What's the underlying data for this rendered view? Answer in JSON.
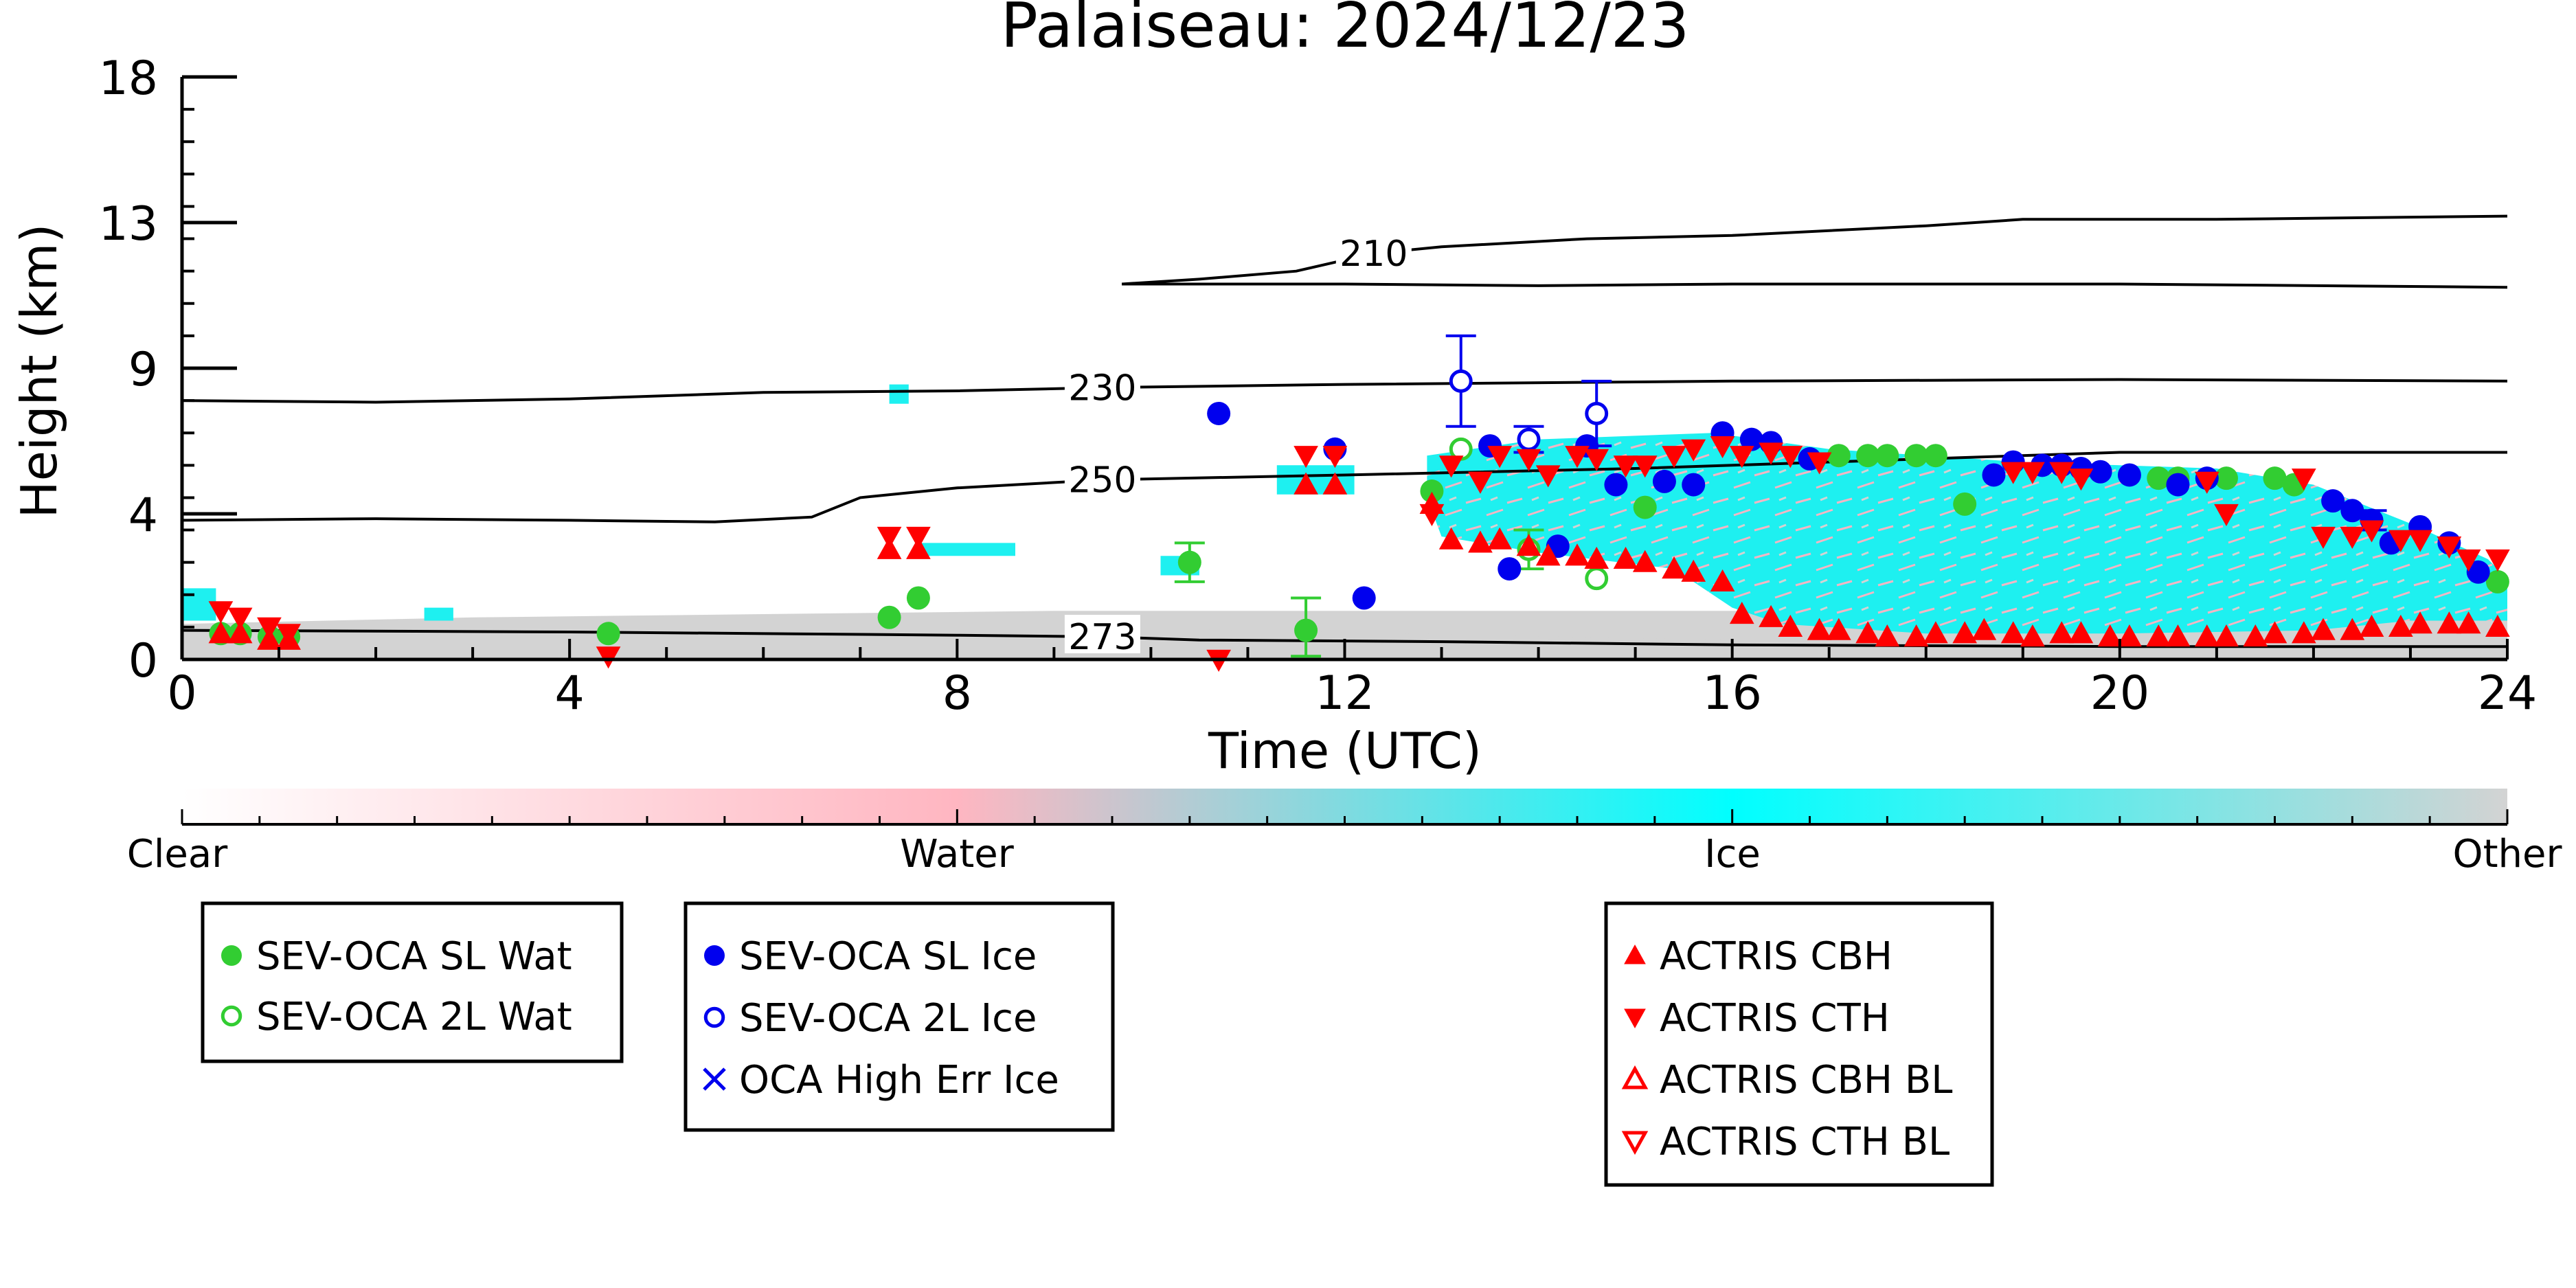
{
  "chart_data": {
    "type": "scatter",
    "title": "Palaiseau: 2024/12/23",
    "xlabel": "Time (UTC)",
    "ylabel": "Height (km)",
    "xlim": [
      0,
      24
    ],
    "ylim": [
      0,
      18
    ],
    "x_ticks": [
      "0",
      "4",
      "8",
      "12",
      "16",
      "20",
      "24"
    ],
    "x_tick_values": [
      0,
      4,
      8,
      12,
      16,
      20,
      24
    ],
    "y_ticks": [
      "0",
      "4",
      "9",
      "13",
      "18"
    ],
    "y_tick_values": [
      0,
      4.5,
      9,
      13.5,
      18
    ],
    "grid": false,
    "colorbar": {
      "labels": [
        "Clear",
        "Water",
        "Ice",
        "Other"
      ],
      "colors": [
        "#ffffff",
        "#ffb6c1",
        "#00ffff",
        "#d3d3d3"
      ]
    },
    "contours": [
      {
        "label": "210",
        "label_at": [
          12.3,
          12.55
        ],
        "points": [
          [
            9.7,
            11.6
          ],
          [
            10.5,
            11.75
          ],
          [
            11.5,
            12.0
          ],
          [
            12.3,
            12.55
          ],
          [
            13,
            12.75
          ],
          [
            14.5,
            13.0
          ],
          [
            16,
            13.1
          ],
          [
            18,
            13.4
          ],
          [
            19,
            13.6
          ],
          [
            21,
            13.6
          ],
          [
            24,
            13.7
          ]
        ]
      },
      {
        "label": "",
        "points": [
          [
            9.7,
            11.6
          ],
          [
            12,
            11.6
          ],
          [
            14,
            11.55
          ],
          [
            16,
            11.6
          ],
          [
            18,
            11.6
          ],
          [
            20,
            11.6
          ],
          [
            24,
            11.5
          ]
        ]
      },
      {
        "label": "230",
        "label_at": [
          9.5,
          8.4
        ],
        "points": [
          [
            0,
            8.0
          ],
          [
            2,
            7.95
          ],
          [
            4,
            8.05
          ],
          [
            6,
            8.25
          ],
          [
            8,
            8.3
          ],
          [
            9.5,
            8.4
          ],
          [
            12,
            8.5
          ],
          [
            16,
            8.6
          ],
          [
            20,
            8.65
          ],
          [
            24,
            8.6
          ]
        ]
      },
      {
        "label": "250",
        "label_at": [
          9.5,
          5.55
        ],
        "points": [
          [
            0,
            4.3
          ],
          [
            2,
            4.35
          ],
          [
            4,
            4.3
          ],
          [
            5.5,
            4.25
          ],
          [
            6.5,
            4.4
          ],
          [
            7,
            5.0
          ],
          [
            8,
            5.3
          ],
          [
            9.5,
            5.55
          ],
          [
            12,
            5.7
          ],
          [
            15,
            5.9
          ],
          [
            18,
            6.2
          ],
          [
            20,
            6.4
          ],
          [
            24,
            6.4
          ]
        ]
      },
      {
        "label": "273",
        "label_at": [
          9.5,
          0.7
        ],
        "points": [
          [
            0,
            0.9
          ],
          [
            4,
            0.85
          ],
          [
            8,
            0.75
          ],
          [
            9.5,
            0.7
          ],
          [
            10.5,
            0.6
          ],
          [
            13,
            0.55
          ],
          [
            16,
            0.45
          ],
          [
            20,
            0.4
          ],
          [
            24,
            0.4
          ]
        ]
      }
    ],
    "series": [
      {
        "name": "SEV-OCA SL Wat",
        "color": "#32cd32",
        "marker": "circle-filled",
        "points": [
          [
            0.4,
            0.8
          ],
          [
            0.6,
            0.8
          ],
          [
            0.9,
            0.7
          ],
          [
            1.1,
            0.7
          ],
          [
            4.4,
            0.8
          ],
          [
            7.3,
            1.3
          ],
          [
            7.6,
            1.9
          ],
          [
            10.4,
            3.0
          ],
          [
            11.6,
            0.9
          ],
          [
            12.9,
            5.2
          ],
          [
            15.1,
            4.7
          ],
          [
            17.1,
            6.3
          ],
          [
            17.4,
            6.3
          ],
          [
            17.6,
            6.3
          ],
          [
            17.9,
            6.3
          ],
          [
            18.1,
            6.3
          ],
          [
            18.4,
            4.8
          ],
          [
            20.4,
            5.6
          ],
          [
            20.6,
            5.6
          ],
          [
            21.1,
            5.6
          ],
          [
            21.6,
            5.6
          ],
          [
            21.8,
            5.4
          ],
          [
            23.9,
            2.4
          ]
        ],
        "errors": [
          [
            10.4,
            2.4,
            3.6
          ],
          [
            11.6,
            0.1,
            1.9
          ]
        ]
      },
      {
        "name": "SEV-OCA 2L Wat",
        "color": "#32cd32",
        "marker": "circle-open",
        "points": [
          [
            13.2,
            6.5
          ],
          [
            13.9,
            3.4
          ],
          [
            14.6,
            2.5
          ]
        ],
        "errors": [
          [
            13.9,
            2.8,
            4.0
          ]
        ]
      },
      {
        "name": "SEV-OCA SL Ice",
        "color": "#0000ee",
        "marker": "circle-filled",
        "points": [
          [
            10.7,
            7.6
          ],
          [
            11.9,
            6.5
          ],
          [
            12.2,
            1.9
          ],
          [
            13.5,
            6.6
          ],
          [
            13.7,
            2.8
          ],
          [
            14.2,
            3.5
          ],
          [
            14.5,
            6.6
          ],
          [
            14.8,
            5.4
          ],
          [
            15.3,
            5.5
          ],
          [
            15.6,
            5.4
          ],
          [
            15.9,
            7.0
          ],
          [
            16.2,
            6.8
          ],
          [
            16.4,
            6.7
          ],
          [
            16.8,
            6.2
          ],
          [
            18.7,
            5.7
          ],
          [
            18.9,
            6.1
          ],
          [
            19.2,
            6.0
          ],
          [
            19.4,
            6.0
          ],
          [
            19.6,
            5.9
          ],
          [
            19.8,
            5.8
          ],
          [
            20.1,
            5.7
          ],
          [
            20.6,
            5.4
          ],
          [
            20.9,
            5.6
          ],
          [
            22.2,
            4.9
          ],
          [
            22.4,
            4.6
          ],
          [
            22.6,
            4.3
          ],
          [
            22.8,
            3.6
          ],
          [
            23.1,
            4.1
          ],
          [
            23.4,
            3.6
          ],
          [
            23.7,
            2.7
          ]
        ],
        "errors": [
          [
            22.6,
            4.0,
            4.6
          ]
        ]
      },
      {
        "name": "SEV-OCA 2L Ice",
        "color": "#0000ee",
        "marker": "circle-open",
        "points": [
          [
            13.2,
            8.6
          ],
          [
            13.9,
            6.8
          ],
          [
            14.6,
            7.6
          ]
        ],
        "errors": [
          [
            13.2,
            7.2,
            10.0
          ],
          [
            13.9,
            6.4,
            7.2
          ],
          [
            14.6,
            6.6,
            8.6
          ]
        ]
      },
      {
        "name": "OCA High Err Ice",
        "color": "#0000ee",
        "marker": "x",
        "points": []
      },
      {
        "name": "ACTRIS CBH",
        "color": "#ff0000",
        "marker": "triangle-up",
        "points": [
          [
            0.4,
            0.8
          ],
          [
            0.6,
            0.8
          ],
          [
            0.9,
            0.6
          ],
          [
            1.1,
            0.6
          ],
          [
            7.3,
            3.4
          ],
          [
            7.6,
            3.4
          ],
          [
            11.6,
            5.4
          ],
          [
            11.9,
            5.4
          ],
          [
            12.9,
            4.8
          ],
          [
            13.1,
            3.7
          ],
          [
            13.4,
            3.6
          ],
          [
            13.6,
            3.7
          ],
          [
            13.9,
            3.5
          ],
          [
            14.1,
            3.2
          ],
          [
            14.4,
            3.2
          ],
          [
            14.6,
            3.1
          ],
          [
            14.9,
            3.1
          ],
          [
            15.1,
            3.0
          ],
          [
            15.4,
            2.8
          ],
          [
            15.6,
            2.7
          ],
          [
            15.9,
            2.4
          ],
          [
            16.1,
            1.4
          ],
          [
            16.4,
            1.3
          ],
          [
            16.6,
            1.0
          ],
          [
            16.9,
            0.9
          ],
          [
            17.1,
            0.9
          ],
          [
            17.4,
            0.8
          ],
          [
            17.6,
            0.7
          ],
          [
            17.9,
            0.7
          ],
          [
            18.1,
            0.8
          ],
          [
            18.4,
            0.8
          ],
          [
            18.6,
            0.9
          ],
          [
            18.9,
            0.8
          ],
          [
            19.1,
            0.7
          ],
          [
            19.4,
            0.8
          ],
          [
            19.6,
            0.8
          ],
          [
            19.9,
            0.7
          ],
          [
            20.1,
            0.7
          ],
          [
            20.4,
            0.7
          ],
          [
            20.6,
            0.7
          ],
          [
            20.9,
            0.7
          ],
          [
            21.1,
            0.7
          ],
          [
            21.4,
            0.7
          ],
          [
            21.6,
            0.8
          ],
          [
            21.9,
            0.8
          ],
          [
            22.1,
            0.9
          ],
          [
            22.4,
            0.9
          ],
          [
            22.6,
            1.0
          ],
          [
            22.9,
            1.0
          ],
          [
            23.1,
            1.1
          ],
          [
            23.4,
            1.1
          ],
          [
            23.6,
            1.1
          ],
          [
            23.9,
            1.0
          ]
        ]
      },
      {
        "name": "ACTRIS CTH",
        "color": "#ff0000",
        "marker": "triangle-down",
        "points": [
          [
            0.4,
            1.5
          ],
          [
            0.6,
            1.3
          ],
          [
            0.9,
            1.0
          ],
          [
            1.1,
            0.8
          ],
          [
            4.4,
            0.1
          ],
          [
            7.3,
            3.8
          ],
          [
            7.6,
            3.8
          ],
          [
            10.7,
            0.0
          ],
          [
            11.6,
            6.3
          ],
          [
            11.9,
            6.3
          ],
          [
            12.9,
            4.5
          ],
          [
            13.1,
            6.0
          ],
          [
            13.4,
            5.5
          ],
          [
            13.6,
            6.3
          ],
          [
            13.9,
            6.2
          ],
          [
            14.1,
            5.7
          ],
          [
            14.4,
            6.3
          ],
          [
            14.6,
            6.2
          ],
          [
            14.9,
            6.0
          ],
          [
            15.1,
            6.0
          ],
          [
            15.4,
            6.3
          ],
          [
            15.6,
            6.5
          ],
          [
            15.9,
            6.6
          ],
          [
            16.1,
            6.3
          ],
          [
            16.4,
            6.4
          ],
          [
            16.6,
            6.3
          ],
          [
            16.9,
            6.1
          ],
          [
            18.9,
            5.8
          ],
          [
            19.1,
            5.8
          ],
          [
            19.4,
            5.8
          ],
          [
            19.6,
            5.6
          ],
          [
            20.9,
            5.5
          ],
          [
            21.1,
            4.5
          ],
          [
            21.9,
            5.6
          ],
          [
            22.1,
            3.8
          ],
          [
            22.4,
            3.8
          ],
          [
            22.6,
            4.0
          ],
          [
            22.9,
            3.7
          ],
          [
            23.1,
            3.7
          ],
          [
            23.4,
            3.5
          ],
          [
            23.6,
            3.1
          ],
          [
            23.9,
            3.1
          ]
        ]
      },
      {
        "name": "ACTRIS CBH BL",
        "color": "#ff0000",
        "marker": "triangle-up-open",
        "points": []
      },
      {
        "name": "ACTRIS CTH BL",
        "color": "#ff0000",
        "marker": "triangle-down-open",
        "points": []
      }
    ],
    "legends": [
      [
        "SEV-OCA SL Wat",
        "SEV-OCA 2L Wat"
      ],
      [
        "SEV-OCA SL Ice",
        "SEV-OCA 2L Ice",
        "OCA High Err Ice"
      ],
      [
        "ACTRIS CBH",
        "ACTRIS CTH",
        "ACTRIS CBH BL",
        "ACTRIS CTH BL"
      ]
    ]
  }
}
